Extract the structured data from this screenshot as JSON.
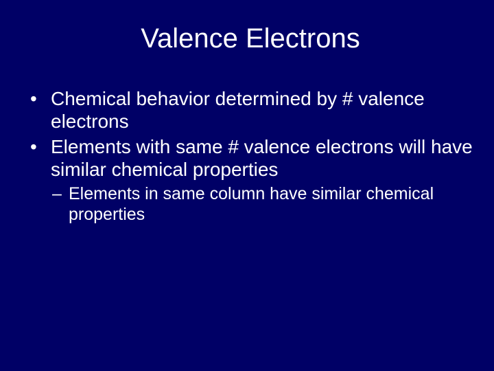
{
  "slide": {
    "title": "Valence Electrons",
    "bullets": [
      "Chemical behavior determined by # valence electrons",
      "Elements with same # valence electrons will have similar chemical properties"
    ],
    "subbullets": [
      "Elements in same column have similar chemical properties"
    ],
    "background_color": "#000066",
    "text_color": "#ffffff",
    "title_fontsize": 40,
    "bullet_fontsize": 28,
    "subbullet_fontsize": 25,
    "font_family": "Arial"
  }
}
